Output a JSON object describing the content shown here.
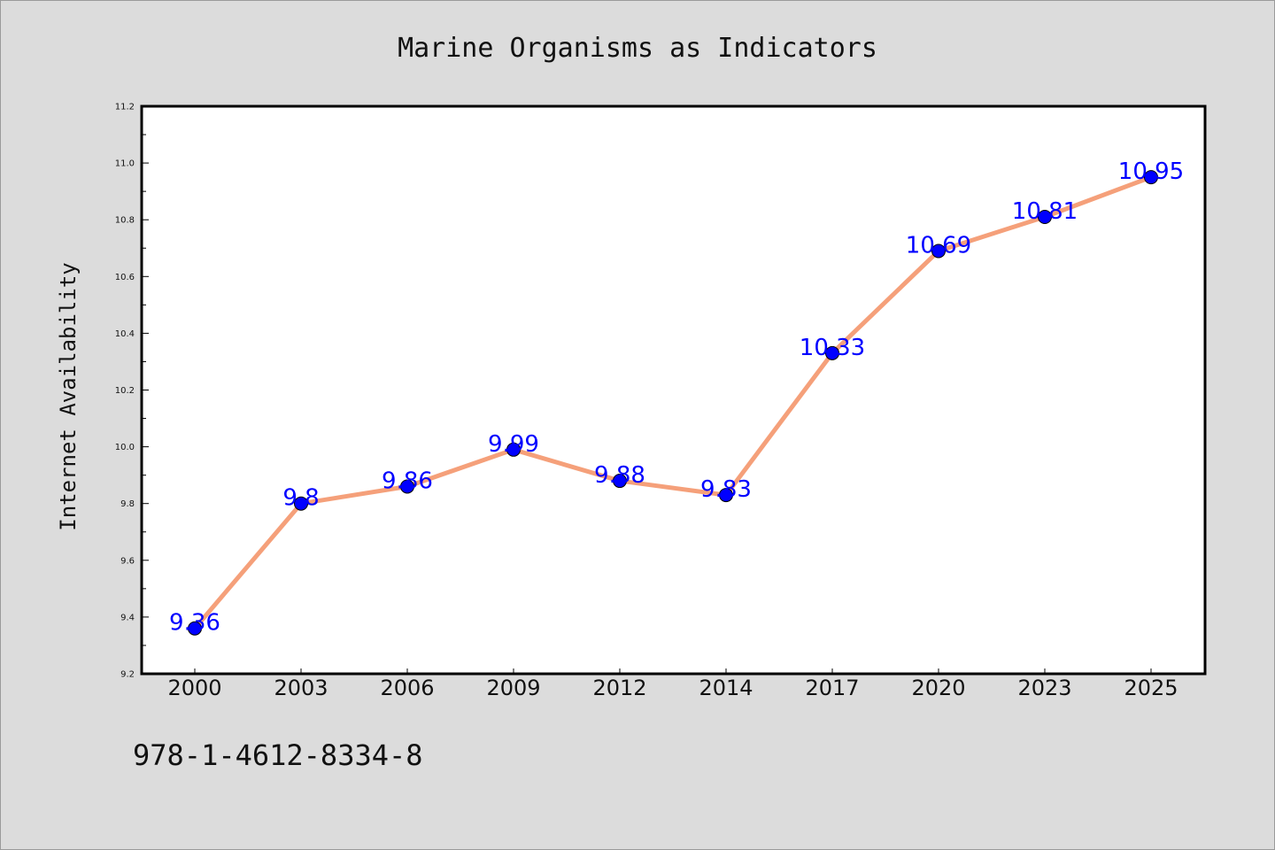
{
  "chart_data": {
    "type": "line",
    "title": "Marine Organisms as Indicators",
    "xlabel": "",
    "ylabel": "Internet Availability",
    "categories": [
      "2000",
      "2003",
      "2006",
      "2009",
      "2012",
      "2014",
      "2017",
      "2020",
      "2023",
      "2025"
    ],
    "series": [
      {
        "values": [
          9.36,
          9.8,
          9.86,
          9.99,
          9.88,
          9.83,
          10.33,
          10.69,
          10.81,
          10.95
        ],
        "labels": [
          "9.36",
          "9.8",
          "9.86",
          "9.99",
          "9.88",
          "9.83",
          "10.33",
          "10.69",
          "10.81",
          "10.95"
        ],
        "line_color": "#f5a07a",
        "marker_color": "#0000ff"
      }
    ],
    "ylim": [
      9.2,
      11.2
    ],
    "yticks": [
      "9.2",
      "9.4",
      "9.6",
      "9.8",
      "10.0",
      "10.2",
      "10.4",
      "10.6",
      "10.8",
      "11.0",
      "11.2"
    ],
    "grid": false,
    "legend": "none"
  },
  "annotation": "978-1-4612-8334-8"
}
